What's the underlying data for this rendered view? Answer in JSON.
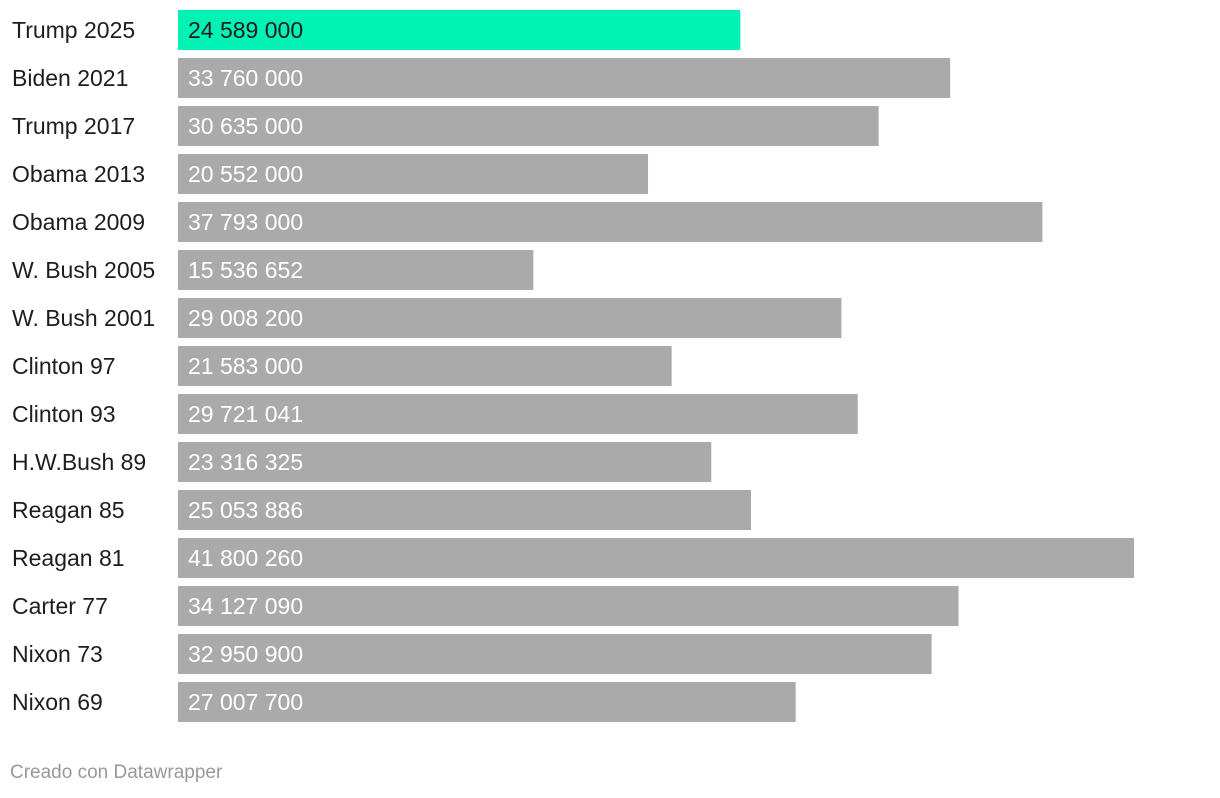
{
  "chart_data": {
    "type": "bar",
    "orientation": "horizontal",
    "categories": [
      "Trump 2025",
      "Biden 2021",
      "Trump 2017",
      "Obama 2013",
      "Obama 2009",
      "W. Bush 2005",
      "W. Bush 2001",
      "Clinton 97",
      "Clinton 93",
      "H.W.Bush 89",
      "Reagan 85",
      "Reagan 81",
      "Carter 77",
      "Nixon 73",
      "Nixon 69"
    ],
    "values": [
      24589000,
      33760000,
      30635000,
      20552000,
      37793000,
      15536652,
      29008200,
      21583000,
      29721041,
      23316325,
      25053886,
      41800260,
      34127090,
      32950900,
      27007700
    ],
    "value_labels": [
      "24 589 000",
      "33 760 000",
      "30 635 000",
      "20 552 000",
      "37 793 000",
      "15 536 652",
      "29 008 200",
      "21 583 000",
      "29 721 041",
      "23 316 325",
      "25 053 886",
      "41 800 260",
      "34 127 090",
      "32 950 900",
      "27 007 700"
    ],
    "highlight_index": 0,
    "colors": {
      "highlight": "#00f3b4",
      "default": "#aaaaaa",
      "highlight_label": "#1d1d1d",
      "default_label": "#ffffff"
    },
    "xlim": [
      0,
      41800260
    ],
    "title": "",
    "xlabel": "",
    "ylabel": "",
    "grid": false,
    "legend": "none"
  },
  "footer": {
    "credit": "Creado con Datawrapper"
  }
}
